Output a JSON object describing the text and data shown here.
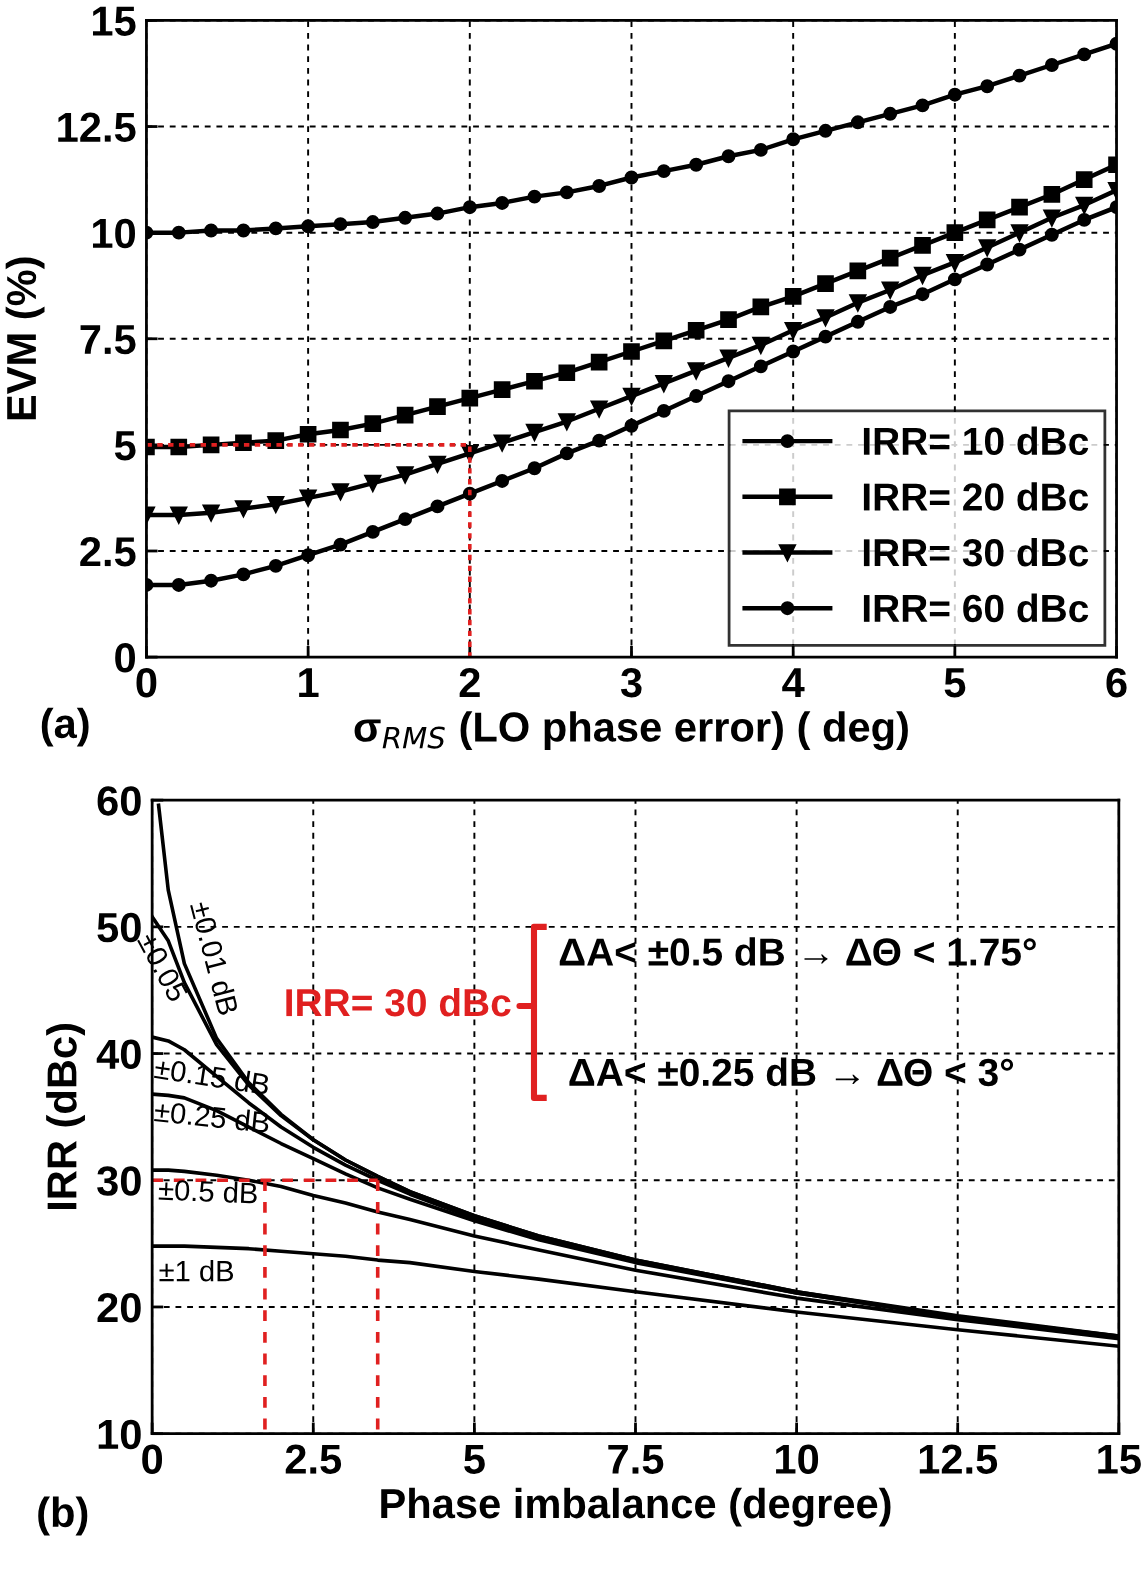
{
  "chart_data": [
    {
      "type": "line",
      "xlabel": "σ$_{RMS}$ (LO phase error) ( deg)",
      "ylabel": "EVM (%)",
      "annotations": [
        "(a)"
      ],
      "x": [
        0,
        0.2,
        0.4,
        0.6,
        0.8,
        1,
        1.2,
        1.4,
        1.6,
        1.8,
        2,
        2.2,
        2.4,
        2.6,
        2.8,
        3,
        3.2,
        3.4,
        3.6,
        3.8,
        4,
        4.2,
        4.4,
        4.6,
        4.8,
        5,
        5.2,
        5.4,
        5.6,
        5.8,
        6
      ],
      "xlim": [
        0,
        6
      ],
      "xticks": [
        0,
        1,
        2,
        3,
        4,
        5,
        6
      ],
      "ylim": [
        0,
        15
      ],
      "yticks": [
        0,
        2.5,
        5,
        7.5,
        10,
        12.5,
        15
      ],
      "grid": true,
      "legend": "bottom right",
      "line_style": "solid",
      "series": [
        {
          "name": "IRR= 10 dBc",
          "color": "#000000",
          "marker": "circle",
          "values": [
            10,
            10,
            10.05,
            10.05,
            10.1,
            10.15,
            10.2,
            10.25,
            10.35,
            10.45,
            10.6,
            10.7,
            10.85,
            10.95,
            11.1,
            11.3,
            11.45,
            11.6,
            11.8,
            11.95,
            12.2,
            12.4,
            12.6,
            12.8,
            13.0,
            13.25,
            13.45,
            13.7,
            13.95,
            14.2,
            14.45
          ]
        },
        {
          "name": "IRR= 20 dBc",
          "color": "#000000",
          "marker": "square",
          "values": [
            4.95,
            4.95,
            5.0,
            5.05,
            5.1,
            5.25,
            5.35,
            5.5,
            5.7,
            5.9,
            6.1,
            6.3,
            6.5,
            6.7,
            6.95,
            7.2,
            7.45,
            7.7,
            7.95,
            8.25,
            8.5,
            8.8,
            9.1,
            9.4,
            9.7,
            10.0,
            10.3,
            10.6,
            10.9,
            11.25,
            11.6
          ]
        },
        {
          "name": "IRR= 30 dBc",
          "color": "#000000",
          "marker": "triangle",
          "values": [
            3.35,
            3.35,
            3.4,
            3.5,
            3.6,
            3.75,
            3.9,
            4.1,
            4.3,
            4.55,
            4.8,
            5.05,
            5.3,
            5.55,
            5.85,
            6.15,
            6.45,
            6.75,
            7.05,
            7.35,
            7.7,
            8.0,
            8.35,
            8.65,
            9.0,
            9.3,
            9.65,
            10.0,
            10.35,
            10.65,
            11.0
          ]
        },
        {
          "name": "IRR= 60 dBc",
          "color": "#000000",
          "marker": "circle",
          "values": [
            1.7,
            1.7,
            1.8,
            1.95,
            2.15,
            2.4,
            2.65,
            2.95,
            3.25,
            3.55,
            3.85,
            4.15,
            4.45,
            4.8,
            5.1,
            5.45,
            5.8,
            6.15,
            6.5,
            6.85,
            7.2,
            7.55,
            7.9,
            8.25,
            8.55,
            8.9,
            9.25,
            9.6,
            9.95,
            10.3,
            10.6
          ]
        },
        {
          "color": "#e02020",
          "marker": "none",
          "line_style": "dotted",
          "x": [
            0,
            2,
            2
          ],
          "values": [
            5,
            5,
            0
          ]
        }
      ]
    },
    {
      "type": "line",
      "xlabel": "Phase imbalance (degree)",
      "ylabel": "IRR (dBc)",
      "annotations": [
        "(b)",
        "IRR= 30 dBc",
        "ΔA< ±0.5 dB → ΔΘ < 1.75°",
        "ΔA< ±0.25 dB → ΔΘ < 3°"
      ],
      "x": [
        0,
        0.25,
        0.5,
        1,
        1.5,
        2,
        2.5,
        3,
        3.5,
        4,
        5,
        6,
        7.5,
        10,
        12.5,
        15
      ],
      "xlim": [
        0,
        15
      ],
      "xticks": [
        0,
        2.5,
        5,
        7.5,
        10,
        12.5,
        15
      ],
      "ylim": [
        10,
        60
      ],
      "yticks": [
        10,
        20,
        30,
        40,
        50,
        60
      ],
      "grid": true,
      "legend": "left",
      "marker": "none",
      "line_style": "solid",
      "series": [
        {
          "name": "±0.01 dB",
          "color": "#000000",
          "x": [
            0.1,
            0.25,
            0.5,
            1,
            1.5,
            2,
            2.5,
            3,
            3.5,
            4,
            5,
            6,
            7.5,
            10,
            12.5,
            15
          ],
          "values": [
            59.6,
            52.9,
            47.1,
            41.2,
            37.7,
            35.2,
            33.2,
            31.6,
            30.3,
            29.1,
            27.2,
            25.6,
            23.7,
            21.2,
            19.3,
            17.7
          ]
        },
        {
          "name": "±0.05",
          "color": "#000000",
          "values": [
            50.8,
            48.9,
            45.6,
            40.7,
            37.5,
            35.1,
            33.2,
            31.6,
            30.3,
            29.1,
            27.2,
            25.6,
            23.7,
            21.2,
            19.2,
            17.7
          ]
        },
        {
          "name": "±0.15 dB",
          "color": "#000000",
          "values": [
            41.3,
            41.0,
            40.3,
            38.2,
            36.1,
            34.2,
            32.6,
            31.2,
            30.0,
            28.9,
            27.0,
            25.5,
            23.6,
            21.1,
            19.2,
            17.6
          ]
        },
        {
          "name": "±0.25 dB",
          "color": "#000000",
          "values": [
            36.8,
            36.7,
            36.5,
            35.5,
            34.2,
            32.9,
            31.7,
            30.5,
            29.4,
            28.5,
            26.8,
            25.3,
            23.5,
            21.1,
            19.2,
            17.6
          ]
        },
        {
          "name": "±0.5 dB",
          "color": "#000000",
          "values": [
            30.8,
            30.8,
            30.7,
            30.4,
            30.0,
            29.5,
            28.8,
            28.2,
            27.5,
            26.9,
            25.6,
            24.5,
            22.9,
            20.7,
            19.0,
            17.5
          ]
        },
        {
          "name": "±1 dB",
          "color": "#000000",
          "values": [
            24.8,
            24.8,
            24.8,
            24.7,
            24.6,
            24.4,
            24.2,
            24.0,
            23.7,
            23.5,
            22.8,
            22.2,
            21.2,
            19.6,
            18.2,
            16.9
          ]
        },
        {
          "color": "#e02020",
          "line_style": "dashed",
          "x": [
            0,
            3.5
          ],
          "values": [
            30,
            30
          ]
        },
        {
          "color": "#e02020",
          "line_style": "dashed",
          "x": [
            1.75,
            1.75
          ],
          "values": [
            30,
            10
          ]
        },
        {
          "color": "#e02020",
          "line_style": "dashed",
          "x": [
            3.5,
            3.5
          ],
          "values": [
            30,
            10
          ]
        }
      ]
    }
  ]
}
